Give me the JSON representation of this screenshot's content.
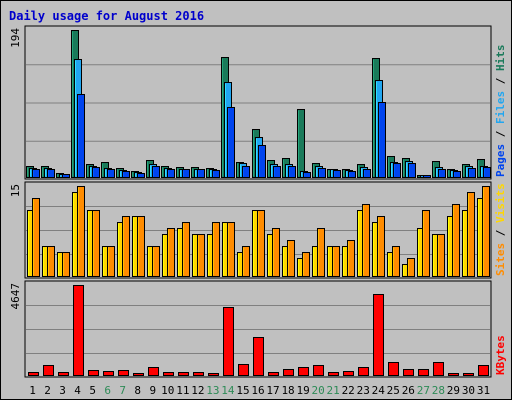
{
  "colors": {
    "hits": "#1a7a5a",
    "files": "#22a6f0",
    "pages": "#0044ee",
    "visits": "#ffd700",
    "sites": "#ff8c00",
    "kbytes": "#ff0000",
    "weekend_label": "#2e8b57",
    "weekday_label": "#000000"
  },
  "chart_data": {
    "type": "bar",
    "title": "Daily usage for August 2016",
    "days": [
      "1",
      "2",
      "3",
      "4",
      "5",
      "6",
      "7",
      "8",
      "9",
      "10",
      "11",
      "12",
      "13",
      "14",
      "15",
      "16",
      "17",
      "18",
      "19",
      "20",
      "21",
      "22",
      "23",
      "24",
      "25",
      "26",
      "27",
      "28",
      "29",
      "30",
      "31"
    ],
    "weekend_days": [
      "6",
      "7",
      "13",
      "14",
      "20",
      "21",
      "27",
      "28"
    ],
    "panels": [
      {
        "id": "hits-files-pages",
        "max_label": "194",
        "max": 194,
        "legend": [
          "Pages",
          "Files",
          "Hits"
        ],
        "series": [
          {
            "name": "Hits",
            "values": [
              14,
              14,
              5,
              194,
              17,
              20,
              12,
              8,
              23,
              14,
              13,
              13,
              12,
              159,
              20,
              63,
              23,
              25,
              90,
              19,
              11,
              11,
              17,
              157,
              28,
              25,
              3,
              21,
              11,
              17,
              24
            ]
          },
          {
            "name": "Files",
            "values": [
              12,
              12,
              4,
              156,
              15,
              12,
              9,
              6,
              17,
              12,
              11,
              11,
              10,
              125,
              18,
              53,
              17,
              17,
              8,
              14,
              10,
              9,
              13,
              128,
              20,
              21,
              2,
              13,
              9,
              14,
              15
            ]
          },
          {
            "name": "Pages",
            "values": [
              11,
              11,
              4,
              109,
              13,
              10,
              8,
              5,
              14,
              11,
              10,
              10,
              9,
              93,
              15,
              42,
              14,
              14,
              6,
              12,
              9,
              8,
              11,
              99,
              18,
              19,
              2,
              11,
              8,
              12,
              13
            ]
          }
        ]
      },
      {
        "id": "visits-sites",
        "max_label": "15",
        "max": 15,
        "legend": [
          "Sites",
          "Visits"
        ],
        "series": [
          {
            "name": "Visits",
            "values": [
              11,
              5,
              4,
              14,
              11,
              5,
              9,
              10,
              5,
              7,
              8,
              7,
              7,
              9,
              4,
              11,
              7,
              5,
              3,
              5,
              5,
              5,
              11,
              9,
              4,
              2,
              8,
              7,
              10,
              11,
              13
            ]
          },
          {
            "name": "Sites",
            "values": [
              13,
              5,
              4,
              15,
              11,
              5,
              10,
              10,
              5,
              8,
              9,
              7,
              9,
              9,
              5,
              11,
              8,
              6,
              4,
              8,
              5,
              6,
              12,
              10,
              5,
              3,
              11,
              7,
              12,
              14,
              15
            ]
          }
        ]
      },
      {
        "id": "kbytes",
        "max_label": "4647",
        "max": 4647,
        "legend": [
          "KBytes"
        ],
        "series": [
          {
            "name": "KBytes",
            "values": [
              150,
              510,
              150,
              4647,
              270,
              210,
              250,
              120,
              430,
              180,
              130,
              150,
              90,
              3520,
              560,
              1960,
              180,
              320,
              430,
              540,
              150,
              200,
              420,
              4180,
              690,
              290,
              290,
              660,
              100,
              110,
              500
            ]
          }
        ]
      }
    ]
  }
}
